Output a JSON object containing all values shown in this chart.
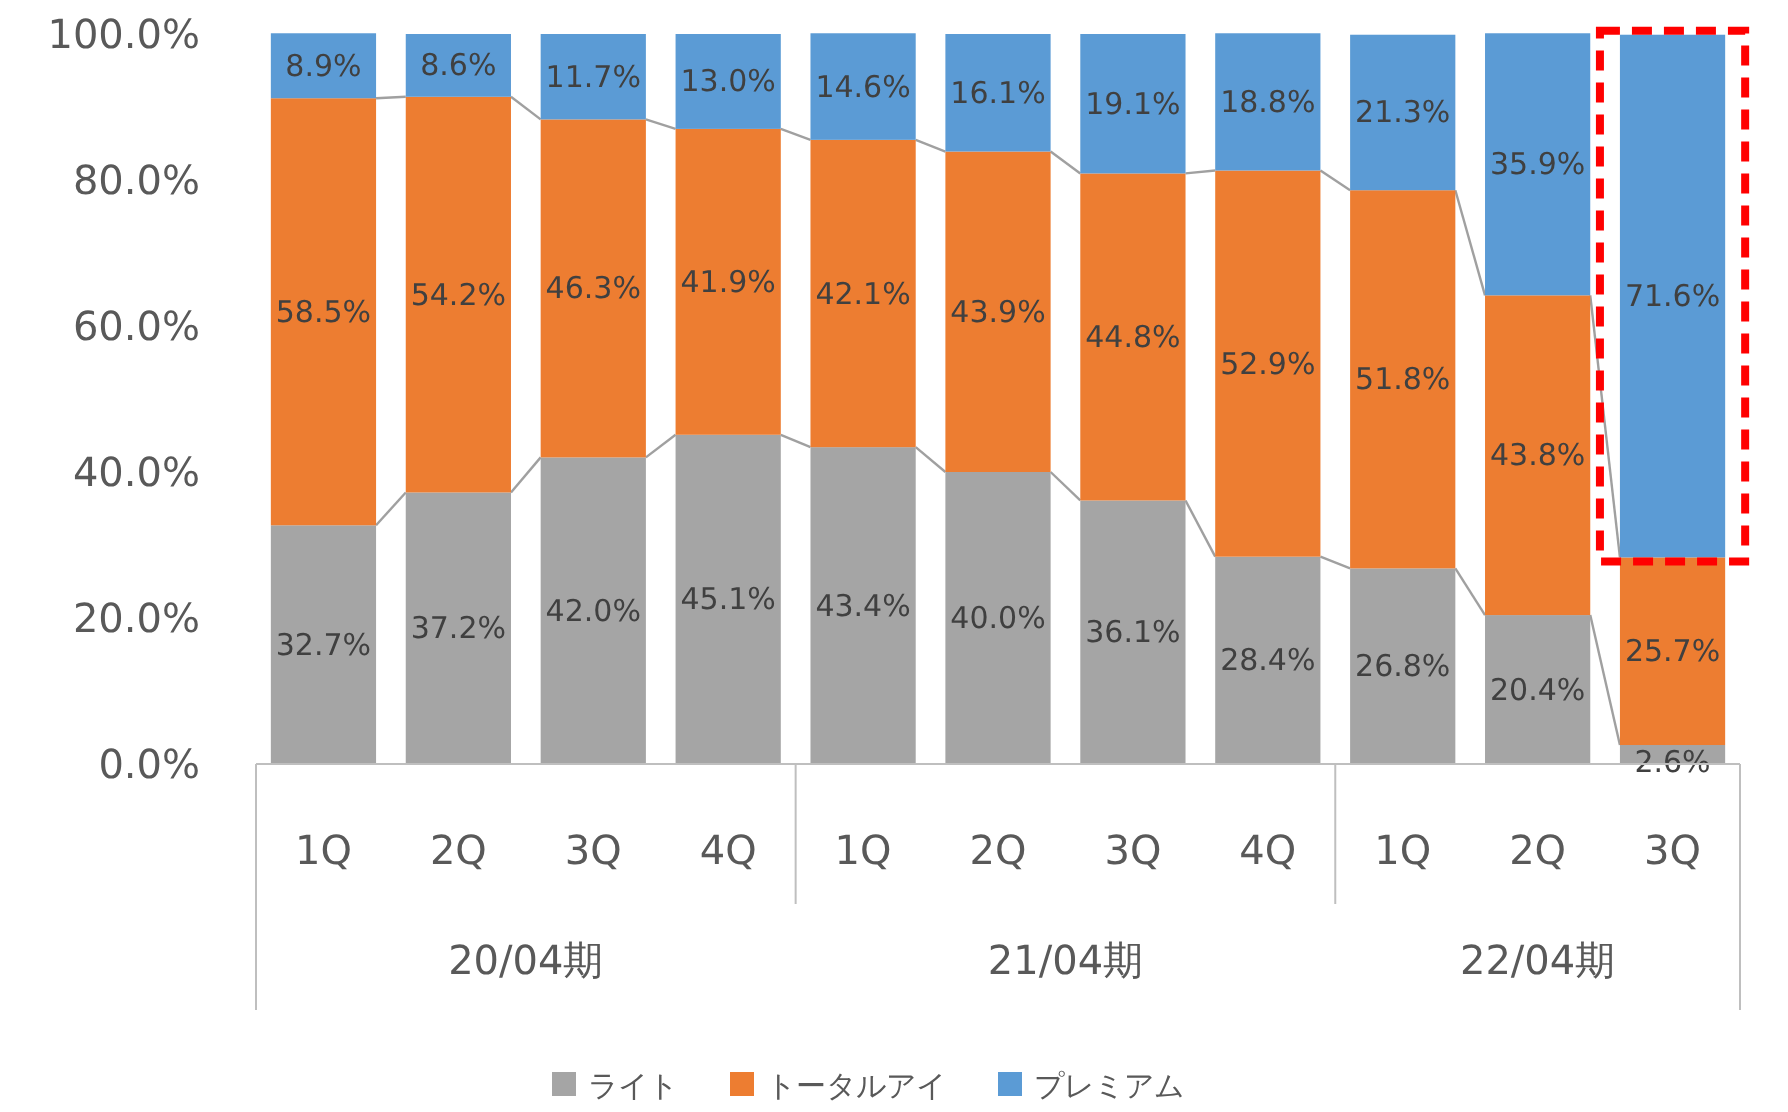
{
  "chart_data": {
    "type": "bar",
    "stacked": true,
    "categories": [
      "1Q",
      "2Q",
      "3Q",
      "4Q",
      "1Q",
      "2Q",
      "3Q",
      "4Q",
      "1Q",
      "2Q",
      "3Q"
    ],
    "annotations": [
      "20/04期",
      "21/04期",
      "22/04期"
    ],
    "series": [
      {
        "name": "ライト",
        "color": "#a5a5a5",
        "values": [
          32.7,
          37.2,
          42.0,
          45.1,
          43.4,
          40.0,
          36.1,
          28.4,
          26.8,
          20.4,
          2.6
        ],
        "value_labels": [
          "32.7%",
          "37.2%",
          "42.0%",
          "45.1%",
          "43.4%",
          "40.0%",
          "36.1%",
          "28.4%",
          "26.8%",
          "20.4%",
          "2.6%"
        ]
      },
      {
        "name": "トータルアイ",
        "color": "#ed7d31",
        "values": [
          58.5,
          54.2,
          46.3,
          41.9,
          42.1,
          43.9,
          44.8,
          52.9,
          51.8,
          43.8,
          25.7
        ],
        "value_labels": [
          "58.5%",
          "54.2%",
          "46.3%",
          "41.9%",
          "42.1%",
          "43.9%",
          "44.8%",
          "52.9%",
          "51.8%",
          "43.8%",
          "25.7%"
        ]
      },
      {
        "name": "プレミアム",
        "color": "#5b9bd5",
        "values": [
          8.9,
          8.6,
          11.7,
          13.0,
          14.6,
          16.1,
          19.1,
          18.8,
          21.3,
          35.9,
          71.6
        ],
        "value_labels": [
          "8.9%",
          "8.6%",
          "11.7%",
          "13.0%",
          "14.6%",
          "16.1%",
          "19.1%",
          "18.8%",
          "21.3%",
          "35.9%",
          "71.6%"
        ]
      }
    ],
    "ylim": [
      0,
      100
    ],
    "yticks": [
      {
        "value": 0,
        "label": "0.0%"
      },
      {
        "value": 20,
        "label": "20.0%"
      },
      {
        "value": 40,
        "label": "40.0%"
      },
      {
        "value": 60,
        "label": "60.0%"
      },
      {
        "value": 80,
        "label": "80.0%"
      },
      {
        "value": 100,
        "label": "100.0%"
      }
    ],
    "grid": false,
    "legend": "bottom"
  }
}
